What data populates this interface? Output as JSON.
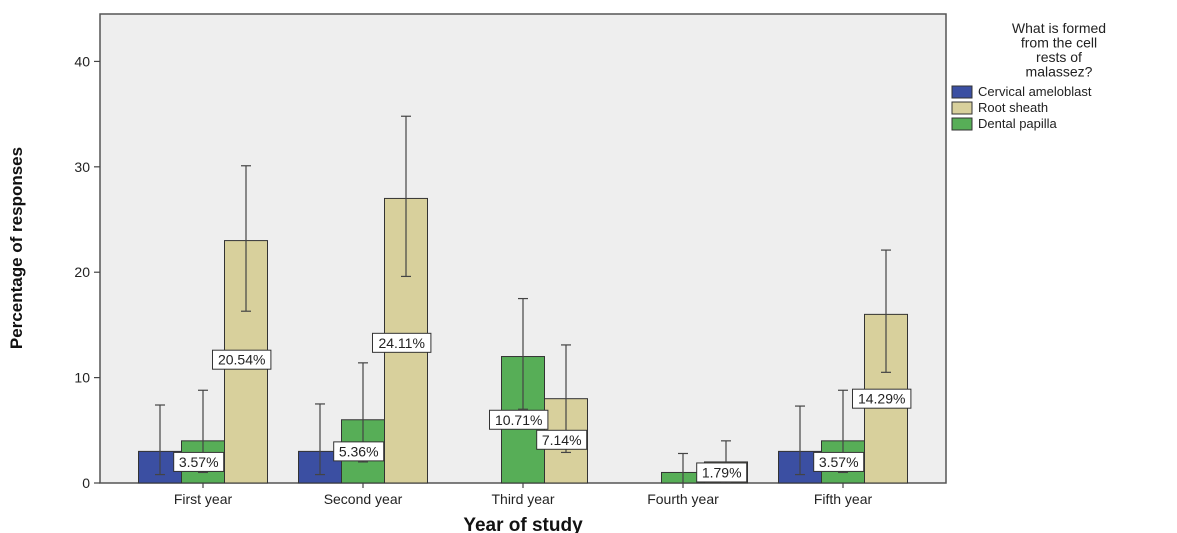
{
  "chart_data": {
    "type": "bar",
    "xlabel": "Year of study",
    "ylabel": "Percentage of responses",
    "ylim": [
      0,
      44.5
    ],
    "yticks": [
      0,
      10,
      20,
      30,
      40
    ],
    "grid": false,
    "legend_position": "right",
    "legend_title_lines": [
      "What is formed",
      "from the cell",
      "rests of",
      "malassez?"
    ],
    "categories": [
      "First year",
      "Second year",
      "Third year",
      "Fourth year",
      "Fifth year"
    ],
    "series": [
      {
        "name": "Cervical ameloblast",
        "color": "#3b4fa2",
        "values": [
          3.0,
          3.0,
          null,
          null,
          3.0
        ],
        "error_low": [
          0.8,
          0.8,
          null,
          null,
          0.8
        ],
        "error_high": [
          7.4,
          7.5,
          null,
          null,
          7.3
        ]
      },
      {
        "name": "Root sheath",
        "color": "#d8d09c",
        "values": [
          23.0,
          27.0,
          8.0,
          2.0,
          16.0
        ],
        "error_low": [
          16.3,
          19.6,
          2.9,
          0,
          10.5
        ],
        "error_high": [
          30.1,
          34.8,
          13.1,
          4.0,
          22.1
        ]
      },
      {
        "name": "Dental papilla",
        "color": "#57ae57",
        "values": [
          4.0,
          6.0,
          12.0,
          1.0,
          4.0
        ],
        "error_low": [
          1.0,
          2.0,
          7.0,
          0,
          1.0
        ],
        "error_high": [
          8.8,
          11.4,
          17.5,
          2.8,
          8.8
        ]
      }
    ],
    "bar_order": [
      "Cervical ameloblast",
      "Dental papilla",
      "Root sheath"
    ],
    "data_labels": [
      {
        "category": "First year",
        "text": "3.57%",
        "y": 2.0
      },
      {
        "category": "First year",
        "text": "20.54%",
        "y": 11.7
      },
      {
        "category": "Second year",
        "text": "5.36%",
        "y": 3.0
      },
      {
        "category": "Second year",
        "text": "24.11%",
        "y": 13.3
      },
      {
        "category": "Third year",
        "text": "10.71%",
        "y": 6.0
      },
      {
        "category": "Third year",
        "text": "7.14%",
        "y": 4.1
      },
      {
        "category": "Fourth year",
        "text": "1.79%",
        "y": 1.0
      },
      {
        "category": "Fifth year",
        "text": "3.57%",
        "y": 2.0
      },
      {
        "category": "Fifth year",
        "text": "14.29%",
        "y": 8.0
      }
    ]
  }
}
